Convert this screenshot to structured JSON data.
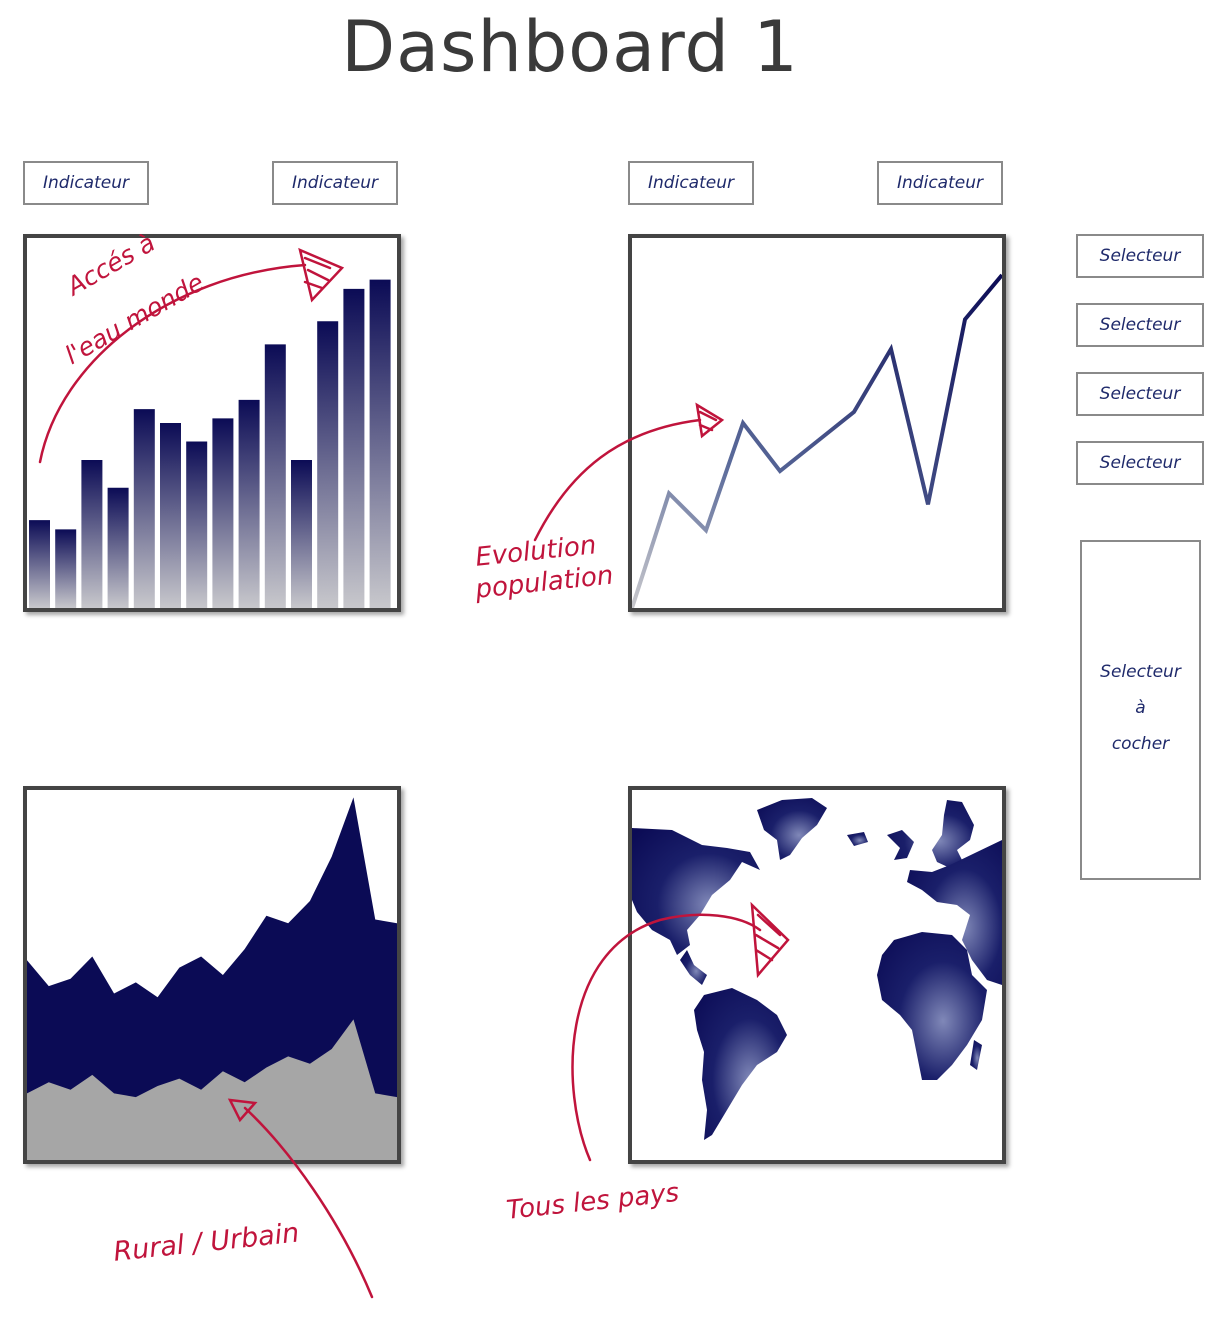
{
  "title": "Dashboard 1",
  "indicators": [
    "Indicateur",
    "Indicateur",
    "Indicateur",
    "Indicateur"
  ],
  "selectors": [
    "Selecteur",
    "Selecteur",
    "Selecteur",
    "Selecteur"
  ],
  "checkbox_selector": {
    "line1": "Selecteur",
    "line2": "à",
    "line3": "cocher"
  },
  "annotations": {
    "water_line1": "Accés à",
    "water_line2": "l'eau monde",
    "population_line1": "Evolution",
    "population_line2": "population",
    "rural": "Rural / Urbain",
    "countries": "Tous les pays"
  },
  "colors": {
    "navy": "#0b0b55",
    "annotation_red": "#c0143c",
    "grey_area": "#a6a6a6"
  },
  "chart_data": [
    {
      "type": "bar",
      "values": [
        19,
        17,
        32,
        26,
        43,
        40,
        36,
        41,
        45,
        57,
        32,
        62,
        69,
        71
      ]
    },
    {
      "type": "line",
      "values": [
        0,
        31,
        21,
        50,
        37,
        45,
        53,
        70,
        28,
        78,
        90
      ]
    },
    {
      "type": "area",
      "series": [
        {
          "values": [
            18,
            21,
            19,
            23,
            18,
            17,
            20,
            22,
            19,
            24,
            21,
            25,
            28,
            26,
            30,
            38,
            18,
            17
          ]
        },
        {
          "values": [
            54,
            47,
            49,
            55,
            45,
            48,
            44,
            52,
            55,
            50,
            57,
            66,
            64,
            70,
            82,
            98,
            65,
            64
          ]
        }
      ]
    },
    {
      "type": "map"
    }
  ]
}
